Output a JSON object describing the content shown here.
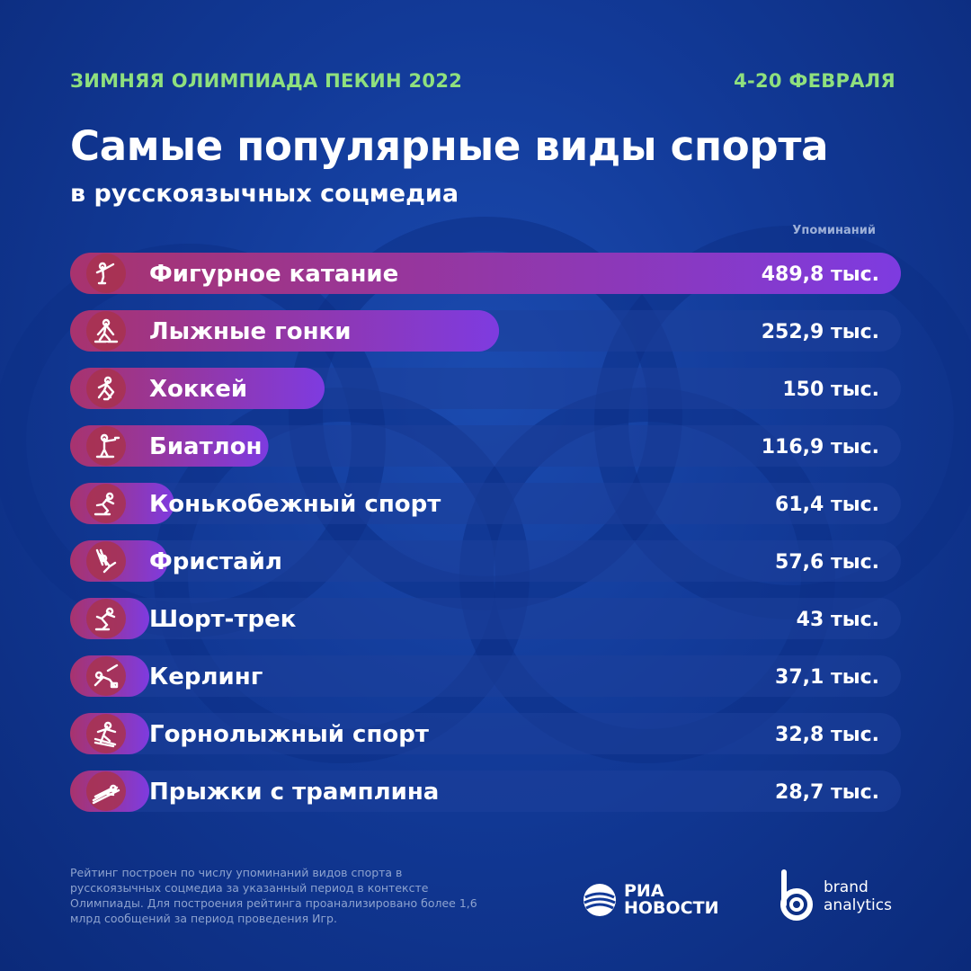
{
  "header": {
    "kicker_left": "ЗИМНЯЯ ОЛИМПИАДА ПЕКИН 2022",
    "kicker_right": "4-20 ФЕВРАЛЯ",
    "title": "Самые популярные виды спорта",
    "subtitle": "в русскоязычных соцмедиа",
    "unit_label": "Упоминаний"
  },
  "colors": {
    "bar_start": "#a8336e",
    "bar_end": "#7e3be0",
    "icon_circle": "#a8334f",
    "track": "#1d3f9a"
  },
  "chart_data": {
    "type": "bar",
    "orientation": "horizontal",
    "title": "Самые популярные виды спорта",
    "subtitle": "в русскоязычных соцмедиа",
    "value_unit": "тыс.",
    "value_axis_label": "Упоминаний",
    "categories": [
      "Фигурное катание",
      "Лыжные гонки",
      "Хоккей",
      "Биатлон",
      "Конькобежный спорт",
      "Фристайл",
      "Шорт-трек",
      "Керлинг",
      "Горнолыжный спорт",
      "Прыжки с трамплина"
    ],
    "values": [
      489.8,
      252.9,
      150,
      116.9,
      61.4,
      57.6,
      43,
      37.1,
      32.8,
      28.7
    ],
    "value_labels": [
      "489,8 тыс.",
      "252,9 тыс.",
      "150 тыс.",
      "116,9 тыс.",
      "61,4 тыс.",
      "57,6 тыс.",
      "43 тыс.",
      "37,1 тыс.",
      "32,8 тыс.",
      "28,7 тыс."
    ],
    "icons": [
      "figure-skating-icon",
      "cross-country-skiing-icon",
      "ice-hockey-icon",
      "biathlon-icon",
      "speed-skating-icon",
      "freestyle-skiing-icon",
      "short-track-icon",
      "curling-icon",
      "alpine-skiing-icon",
      "ski-jumping-icon"
    ],
    "xlim": [
      0,
      489.8
    ],
    "grid": false,
    "legend": "none"
  },
  "footnote": "Рейтинг построен по числу упоминаний видов спорта в русскоязычных соцмедиа за указанный период в контексте Олимпиады. Для построения рейтинга проанализировано более 1,6 млрд сообщений за период проведения Игр.",
  "logos": {
    "ria_line1": "РИА",
    "ria_line2": "НОВОСТИ",
    "ba_line1": "brand",
    "ba_line2": "analytics"
  }
}
